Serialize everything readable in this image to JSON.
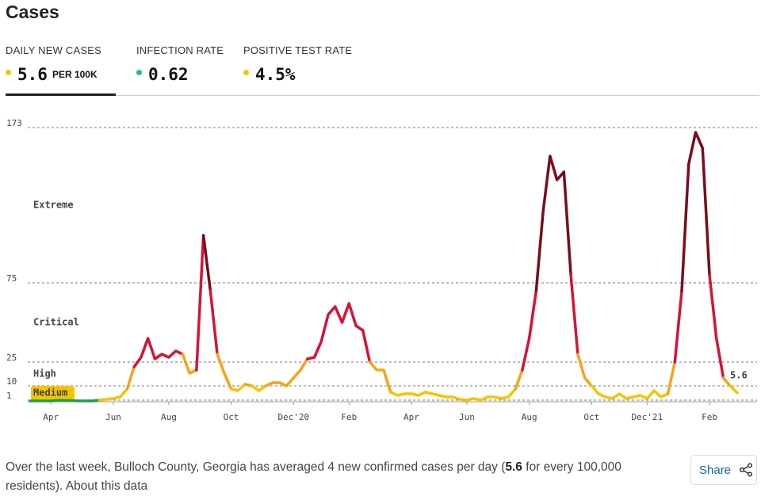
{
  "header": {
    "title": "Cases"
  },
  "tabs": [
    {
      "label": "DAILY NEW CASES",
      "value": "5.6",
      "unit": "PER 100K",
      "dot": "#f5c400"
    },
    {
      "label": "INFECTION RATE",
      "value": "0.62",
      "dot": "#21c17c"
    },
    {
      "label": "POSITIVE TEST RATE",
      "value": "4.5%",
      "dot": "#f5c400"
    }
  ],
  "chart_data": {
    "type": "line",
    "categories": [
      null,
      null,
      null,
      "Apr",
      null,
      null,
      null,
      null,
      null,
      null,
      null,
      null,
      "Jun",
      null,
      null,
      null,
      null,
      null,
      null,
      null,
      "Aug",
      null,
      null,
      null,
      null,
      null,
      null,
      null,
      null,
      "Oct",
      null,
      null,
      null,
      null,
      null,
      null,
      null,
      null,
      "Dec'20",
      null,
      null,
      null,
      null,
      null,
      null,
      null,
      "Feb",
      null,
      null,
      null,
      null,
      null,
      null,
      null,
      null,
      "Apr",
      null,
      null,
      null,
      null,
      null,
      null,
      null,
      "Jun",
      null,
      null,
      null,
      null,
      null,
      null,
      null,
      null,
      "Aug",
      null,
      null,
      null,
      null,
      null,
      null,
      null,
      null,
      "Oct",
      null,
      null,
      null,
      null,
      null,
      null,
      null,
      "Dec'21",
      null,
      null,
      null,
      null,
      null,
      null,
      null,
      null,
      "Feb",
      null,
      null,
      null,
      null
    ],
    "values": [
      0.5,
      0.5,
      0.5,
      0.5,
      0.8,
      0.8,
      0.7,
      0.5,
      0.5,
      0.5,
      1,
      1.5,
      2,
      3,
      8,
      22,
      28,
      40,
      27,
      30,
      28,
      32,
      30,
      18,
      20,
      105,
      70,
      30,
      18,
      8,
      7,
      11,
      10,
      7,
      10,
      12,
      12,
      10,
      15,
      20,
      27,
      28,
      38,
      55,
      60,
      50,
      62,
      48,
      45,
      25,
      20,
      20,
      6,
      4,
      5,
      5,
      4,
      6,
      5,
      4,
      3,
      3,
      1.5,
      1,
      2,
      1,
      3,
      3,
      2,
      3,
      8,
      20,
      40,
      70,
      120,
      155,
      140,
      145,
      80,
      30,
      15,
      10,
      5,
      3,
      2,
      5,
      2,
      3,
      4,
      2,
      7,
      3,
      5,
      25,
      70,
      150,
      170,
      160,
      80,
      40,
      15,
      10,
      5.6
    ],
    "ylim": [
      0,
      173
    ],
    "yticks": [
      1,
      10,
      25,
      75,
      173
    ],
    "grid": true,
    "zone_colors": [
      "#1e9e4a",
      "#f5c400",
      "#f5a31a",
      "#d31438",
      "#7a0c1d"
    ],
    "zones": [
      "Medium",
      "High",
      "Critical",
      "Extreme"
    ]
  },
  "footer": {
    "before": "Over the last week, Bulloch County, Georgia has averaged 4 new confirmed cases per day (",
    "bold": "5.6",
    "after": " for every 100,000 residents). ",
    "link": "About this data"
  },
  "share": "Share"
}
